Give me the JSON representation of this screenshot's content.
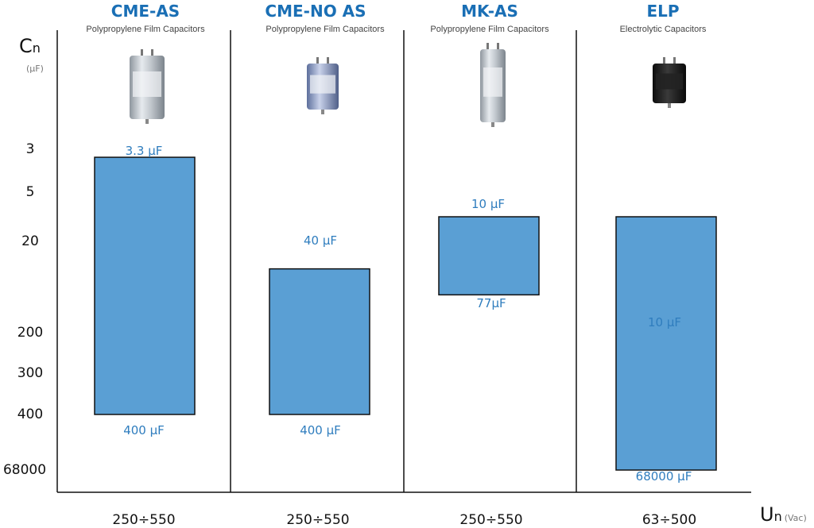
{
  "chart_data": {
    "type": "bar",
    "y_axis": {
      "label_main": "C",
      "label_sub": "n",
      "unit": "(µF)",
      "ticks": [
        "3",
        "5",
        "20",
        "200",
        "300",
        "400",
        "68000"
      ]
    },
    "x_axis": {
      "label_main": "U",
      "label_sub": "n",
      "unit": "(Vac)"
    },
    "series": [
      {
        "name": "CME-AS",
        "description": "Polypropylene Film Capacitors",
        "min_uF": 3.3,
        "max_uF": 400,
        "min_label": "3.3 µF",
        "max_label": "400 µF",
        "voltage": "250÷550",
        "color": "#5a9fd4"
      },
      {
        "name": "CME-NO AS",
        "description": "Polypropylene Film Capacitors",
        "min_uF": 40,
        "max_uF": 400,
        "min_label": "40 µF",
        "max_label": "400 µF",
        "voltage": "250÷550",
        "color": "#5a9fd4"
      },
      {
        "name": "MK-AS",
        "description": "Polypropylene Film Capacitors",
        "min_uF": 10,
        "max_uF": 77,
        "min_label": "10 µF",
        "max_label": "77µF",
        "voltage": "250÷550",
        "color": "#5a9fd4"
      },
      {
        "name": "ELP",
        "description": "Electrolytic Capacitors",
        "min_uF": 10,
        "max_uF": 68000,
        "min_label": "10 µF",
        "max_label": "68000 µF",
        "voltage": "63÷500",
        "color": "#5a9fd4"
      }
    ],
    "product_images": [
      "silver-cylinder-capacitor",
      "silver-cylinder-capacitor",
      "silver-tall-capacitor",
      "black-electrolytic-capacitor"
    ],
    "colors": {
      "accent": "#1a6fb5",
      "bar_fill": "#5a9fd4",
      "bar_stroke": "#111111"
    }
  }
}
